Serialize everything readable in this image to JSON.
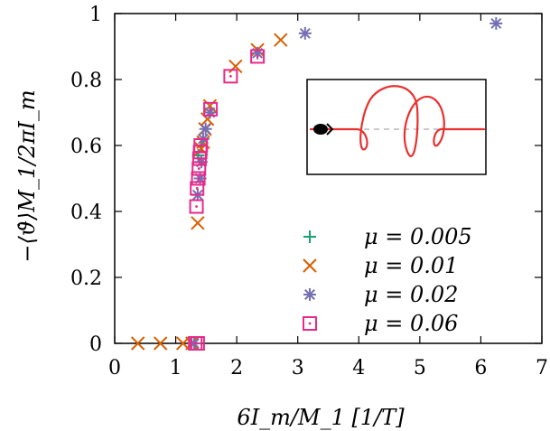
{
  "chart_data": {
    "type": "scatter",
    "title": "",
    "xlabel": "6I_m/M_1 [1/T]",
    "ylabel": "−⟨ϑ̇⟩M_1/2πI_m",
    "xlim": [
      0,
      7
    ],
    "ylim": [
      0,
      1
    ],
    "xticks": [
      "0",
      "1",
      "2",
      "3",
      "4",
      "5",
      "6",
      "7"
    ],
    "yticks": [
      "0",
      "0.2",
      "0.4",
      "0.6",
      "0.8",
      "1"
    ],
    "legend_position": "bottom-right",
    "series": [
      {
        "name": "μ = 0.005",
        "marker": "plus",
        "color": "#1a9e77",
        "points": [
          [
            1.32,
            0.0
          ],
          [
            1.37,
            0.57
          ],
          [
            1.42,
            0.6
          ]
        ]
      },
      {
        "name": "μ = 0.01",
        "marker": "cross",
        "color": "#d95f02",
        "points": [
          [
            0.38,
            0.0
          ],
          [
            0.75,
            0.0
          ],
          [
            1.12,
            0.0
          ],
          [
            1.27,
            0.0
          ],
          [
            1.36,
            0.365
          ],
          [
            1.42,
            0.59
          ],
          [
            1.45,
            0.61
          ],
          [
            1.48,
            0.65
          ],
          [
            1.52,
            0.68
          ],
          [
            1.56,
            0.72
          ],
          [
            1.98,
            0.84
          ],
          [
            2.34,
            0.89
          ],
          [
            2.72,
            0.92
          ]
        ]
      },
      {
        "name": "μ = 0.02",
        "marker": "star",
        "color": "#7570b3",
        "points": [
          [
            1.3,
            0.0
          ],
          [
            1.36,
            0.45
          ],
          [
            1.4,
            0.5
          ],
          [
            1.42,
            0.55
          ],
          [
            1.45,
            0.62
          ],
          [
            1.49,
            0.65
          ],
          [
            1.56,
            0.7
          ],
          [
            2.34,
            0.88
          ],
          [
            3.12,
            0.94
          ],
          [
            6.25,
            0.97
          ]
        ]
      },
      {
        "name": "μ = 0.06",
        "marker": "dotted-square",
        "color": "#e7298a",
        "points": [
          [
            1.32,
            0.0
          ],
          [
            1.36,
            0.0
          ],
          [
            1.34,
            0.415
          ],
          [
            1.35,
            0.47
          ],
          [
            1.37,
            0.5
          ],
          [
            1.38,
            0.53
          ],
          [
            1.39,
            0.56
          ],
          [
            1.4,
            0.58
          ],
          [
            1.41,
            0.6
          ],
          [
            1.57,
            0.71
          ],
          [
            1.9,
            0.81
          ],
          [
            2.34,
            0.87
          ]
        ]
      }
    ]
  },
  "inset": {
    "description_icon": "spiral-trajectory-icon"
  }
}
